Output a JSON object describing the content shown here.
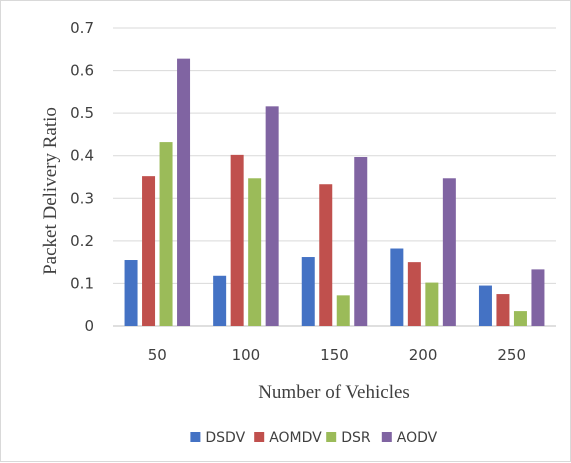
{
  "chart_data": {
    "type": "bar",
    "title": "",
    "xlabel": "Number of Vehicles",
    "ylabel": "Packet Delivery Ratio",
    "categories": [
      "50",
      "100",
      "150",
      "200",
      "250"
    ],
    "ylim": [
      0,
      0.7
    ],
    "yticks": [
      "0",
      "0.1",
      "0.2",
      "0.3",
      "0.4",
      "0.5",
      "0.6",
      "0.7"
    ],
    "grid": true,
    "legend_position": "bottom",
    "series": [
      {
        "name": "DSDV",
        "color": "#4472c4",
        "values": [
          0.155,
          0.118,
          0.162,
          0.182,
          0.095
        ]
      },
      {
        "name": "AOMDV",
        "color": "#c0504d",
        "values": [
          0.352,
          0.402,
          0.333,
          0.15,
          0.075
        ]
      },
      {
        "name": "DSR",
        "color": "#9bbb59",
        "values": [
          0.432,
          0.347,
          0.072,
          0.102,
          0.035
        ]
      },
      {
        "name": "AODV",
        "color": "#8064a2",
        "values": [
          0.628,
          0.516,
          0.397,
          0.347,
          0.133
        ]
      }
    ]
  }
}
